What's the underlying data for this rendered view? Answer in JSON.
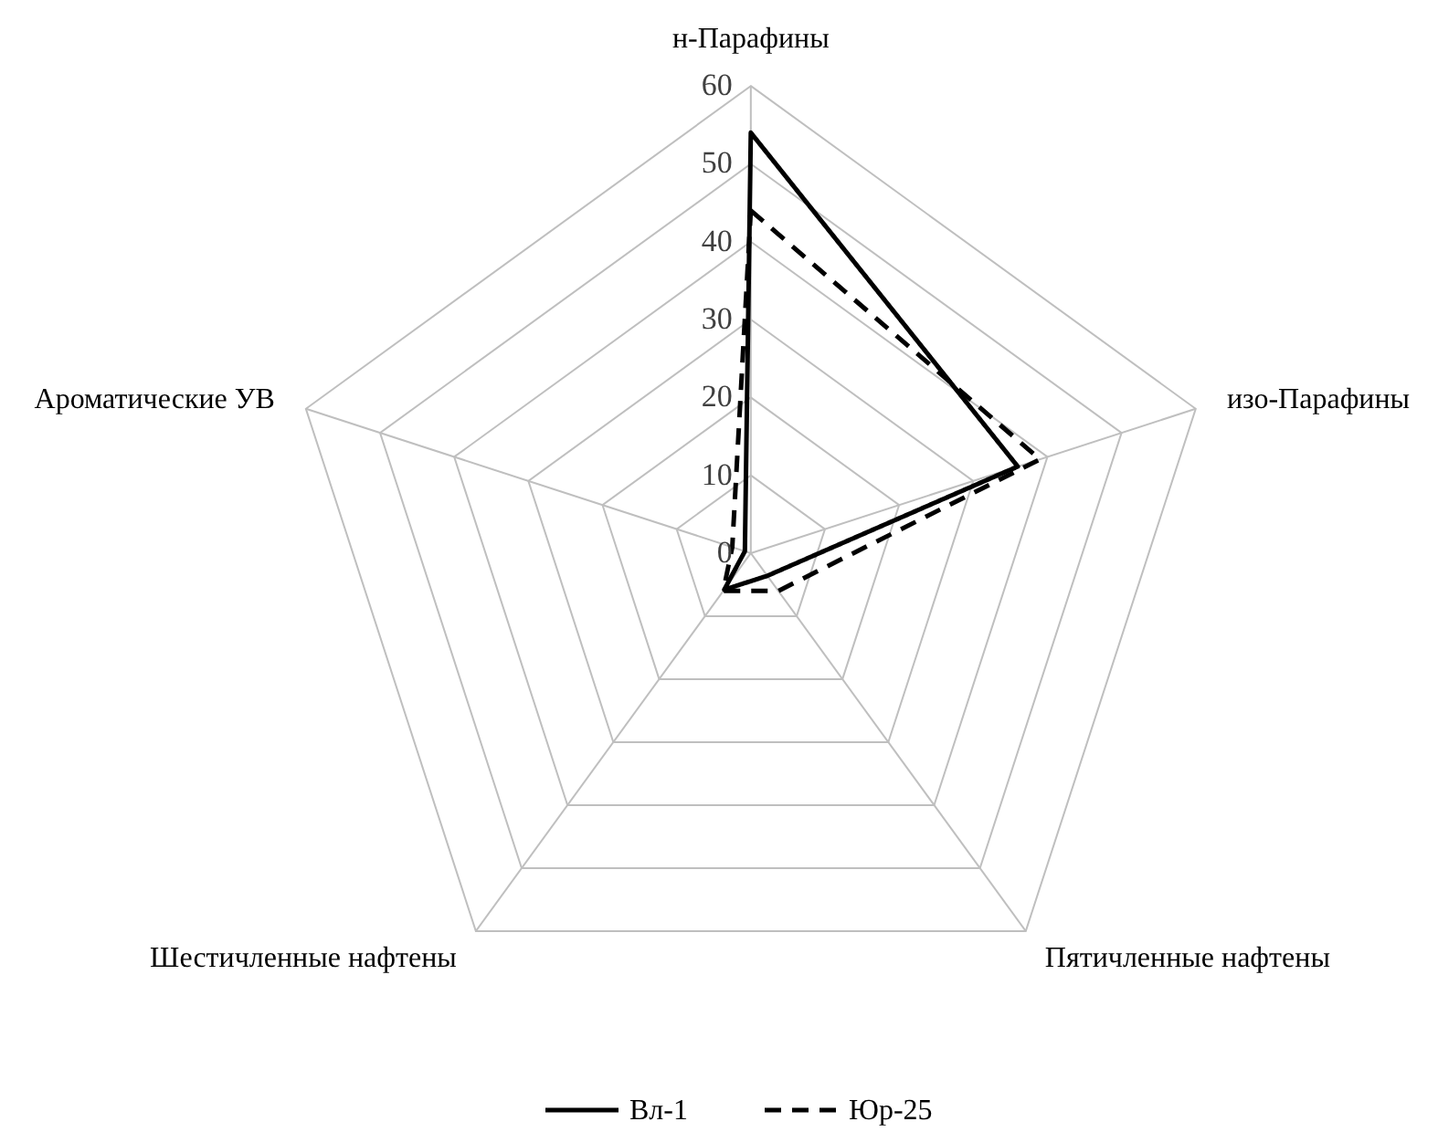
{
  "chart_data": {
    "type": "radar",
    "categories": [
      "н-Парафины",
      "изо-Парафины",
      "Пятичленные нафтены",
      "Шестичленные нафтены",
      "Ароматические УВ"
    ],
    "series": [
      {
        "name": "Вл-1",
        "color": "#000000",
        "line_style": "solid",
        "values": [
          54,
          36,
          3.6,
          5.8,
          0.8
        ]
      },
      {
        "name": "Юр-25",
        "color": "#000000",
        "line_style": "dashed",
        "values": [
          44,
          39,
          6,
          6,
          2.5
        ]
      }
    ],
    "ylim": [
      0,
      60
    ],
    "yticks": [
      0,
      10,
      20,
      30,
      40,
      50,
      60
    ],
    "grid": true,
    "legend": "bottom"
  }
}
